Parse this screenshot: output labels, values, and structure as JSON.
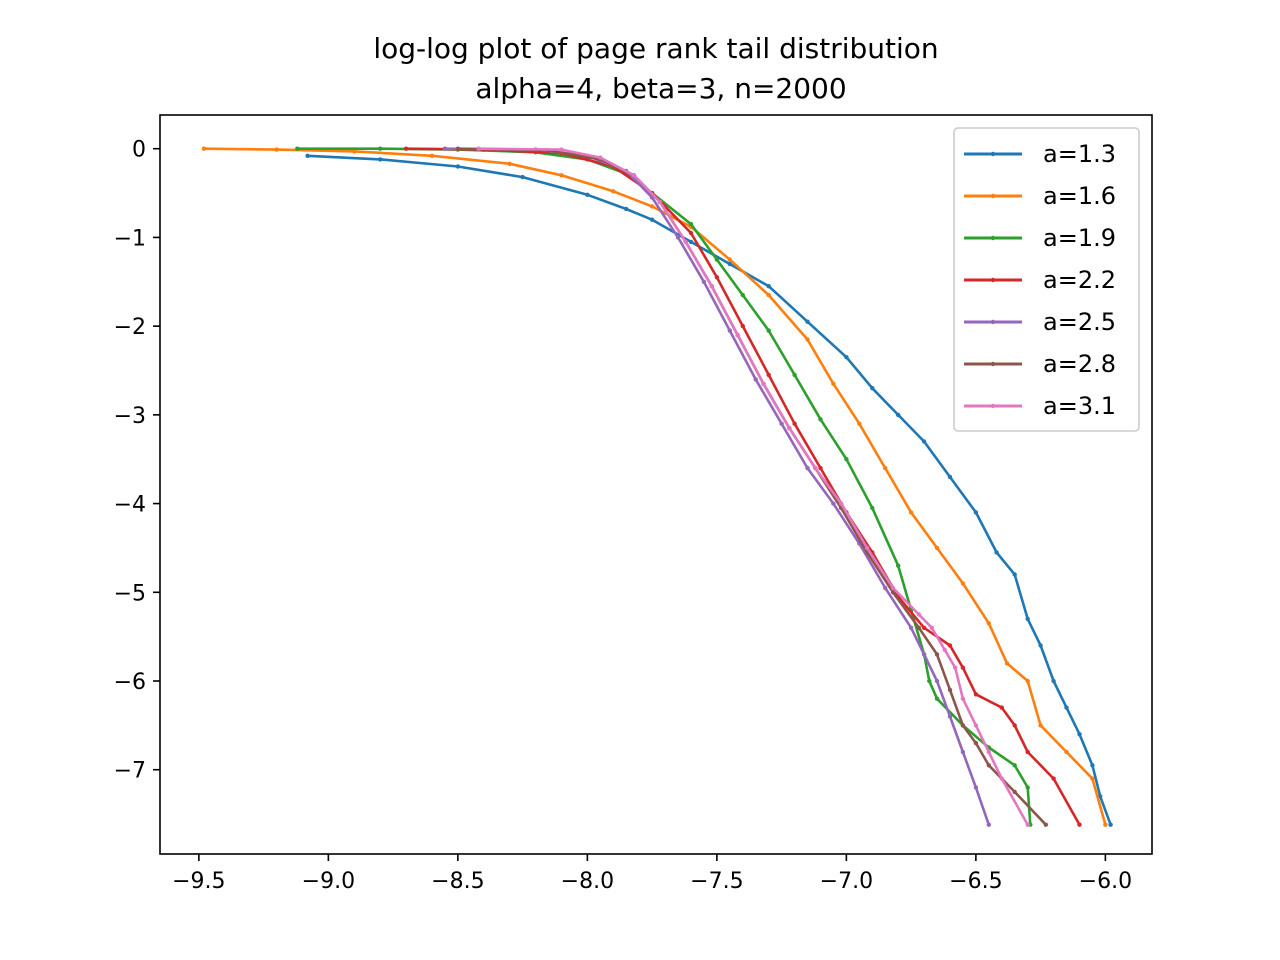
{
  "chart_data": {
    "type": "line",
    "title": "log-log plot of page rank tail distribution",
    "subtitle": "alpha=4, beta=3, n=2000",
    "xlabel": "",
    "ylabel": "",
    "xlim": [
      -9.65,
      -5.82
    ],
    "ylim": [
      -7.95,
      0.38
    ],
    "xticks": [
      -9.5,
      -9.0,
      -8.5,
      -8.0,
      -7.5,
      -7.0,
      -6.5,
      -6.0
    ],
    "xtick_labels": [
      "−9.5",
      "−9.0",
      "−8.5",
      "−8.0",
      "−7.5",
      "−7.0",
      "−6.5",
      "−6.0"
    ],
    "yticks": [
      0,
      -1,
      -2,
      -3,
      -4,
      -5,
      -6,
      -7
    ],
    "ytick_labels": [
      "0",
      "−1",
      "−2",
      "−3",
      "−4",
      "−5",
      "−6",
      "−7"
    ],
    "grid": false,
    "legend_position": "top-right",
    "series": [
      {
        "name": "a=1.3",
        "color": "#1f77b4",
        "x": [
          -9.08,
          -8.8,
          -8.5,
          -8.25,
          -8.0,
          -7.85,
          -7.75,
          -7.6,
          -7.45,
          -7.3,
          -7.15,
          -7.0,
          -6.9,
          -6.8,
          -6.7,
          -6.6,
          -6.5,
          -6.42,
          -6.35,
          -6.3,
          -6.25,
          -6.2,
          -6.15,
          -6.1,
          -6.05,
          -6.02,
          -5.98
        ],
        "y": [
          -0.08,
          -0.12,
          -0.2,
          -0.32,
          -0.52,
          -0.68,
          -0.8,
          -1.05,
          -1.3,
          -1.55,
          -1.95,
          -2.35,
          -2.7,
          -3.0,
          -3.3,
          -3.7,
          -4.1,
          -4.55,
          -4.8,
          -5.3,
          -5.6,
          -6.0,
          -6.3,
          -6.6,
          -6.95,
          -7.3,
          -7.62
        ]
      },
      {
        "name": "a=1.6",
        "color": "#ff7f0e",
        "x": [
          -9.48,
          -9.2,
          -8.9,
          -8.6,
          -8.3,
          -8.1,
          -7.9,
          -7.75,
          -7.6,
          -7.45,
          -7.3,
          -7.15,
          -7.05,
          -6.95,
          -6.85,
          -6.75,
          -6.65,
          -6.55,
          -6.45,
          -6.38,
          -6.3,
          -6.25,
          -6.15,
          -6.05,
          -6.0
        ],
        "y": [
          0.0,
          -0.01,
          -0.03,
          -0.08,
          -0.17,
          -0.3,
          -0.48,
          -0.65,
          -0.88,
          -1.25,
          -1.65,
          -2.15,
          -2.65,
          -3.1,
          -3.6,
          -4.1,
          -4.5,
          -4.9,
          -5.35,
          -5.8,
          -6.0,
          -6.5,
          -6.8,
          -7.1,
          -7.62
        ]
      },
      {
        "name": "a=1.9",
        "color": "#2ca02c",
        "x": [
          -9.12,
          -8.8,
          -8.5,
          -8.2,
          -8.0,
          -7.85,
          -7.75,
          -7.6,
          -7.5,
          -7.4,
          -7.3,
          -7.2,
          -7.1,
          -7.0,
          -6.9,
          -6.8,
          -6.75,
          -6.7,
          -6.68,
          -6.65,
          -6.55,
          -6.45,
          -6.35,
          -6.3,
          -6.29
        ],
        "y": [
          0.0,
          0.0,
          -0.01,
          -0.04,
          -0.12,
          -0.28,
          -0.5,
          -0.85,
          -1.25,
          -1.65,
          -2.05,
          -2.55,
          -3.05,
          -3.5,
          -4.05,
          -4.7,
          -5.2,
          -5.7,
          -6.0,
          -6.2,
          -6.5,
          -6.75,
          -6.95,
          -7.2,
          -7.62
        ]
      },
      {
        "name": "a=2.2",
        "color": "#d62728",
        "x": [
          -8.7,
          -8.4,
          -8.1,
          -7.9,
          -7.75,
          -7.6,
          -7.5,
          -7.4,
          -7.3,
          -7.2,
          -7.1,
          -7.0,
          -6.9,
          -6.8,
          -6.7,
          -6.6,
          -6.55,
          -6.5,
          -6.4,
          -6.35,
          -6.3,
          -6.2,
          -6.1
        ],
        "y": [
          0.0,
          -0.01,
          -0.05,
          -0.2,
          -0.5,
          -0.95,
          -1.45,
          -2.0,
          -2.55,
          -3.1,
          -3.6,
          -4.1,
          -4.55,
          -5.05,
          -5.4,
          -5.6,
          -5.85,
          -6.15,
          -6.3,
          -6.5,
          -6.8,
          -7.1,
          -7.62
        ]
      },
      {
        "name": "a=2.5",
        "color": "#9467bd",
        "x": [
          -8.55,
          -8.2,
          -8.0,
          -7.85,
          -7.75,
          -7.65,
          -7.55,
          -7.45,
          -7.35,
          -7.25,
          -7.15,
          -7.05,
          -6.95,
          -6.85,
          -6.75,
          -6.7,
          -6.65,
          -6.6,
          -6.55,
          -6.5,
          -6.45
        ],
        "y": [
          0.0,
          -0.01,
          -0.08,
          -0.25,
          -0.55,
          -1.0,
          -1.5,
          -2.05,
          -2.6,
          -3.1,
          -3.6,
          -4.0,
          -4.45,
          -4.95,
          -5.4,
          -5.7,
          -6.0,
          -6.4,
          -6.8,
          -7.2,
          -7.62
        ]
      },
      {
        "name": "a=2.8",
        "color": "#8c564b",
        "x": [
          -8.5,
          -8.15,
          -7.95,
          -7.82,
          -7.72,
          -7.62,
          -7.52,
          -7.42,
          -7.32,
          -7.22,
          -7.12,
          -7.02,
          -6.92,
          -6.82,
          -6.72,
          -6.65,
          -6.6,
          -6.55,
          -6.5,
          -6.45,
          -6.35,
          -6.23
        ],
        "y": [
          0.0,
          -0.02,
          -0.12,
          -0.3,
          -0.6,
          -1.05,
          -1.55,
          -2.1,
          -2.65,
          -3.15,
          -3.6,
          -4.05,
          -4.55,
          -5.0,
          -5.4,
          -5.7,
          -6.1,
          -6.5,
          -6.7,
          -6.95,
          -7.25,
          -7.62
        ]
      },
      {
        "name": "a=3.1",
        "color": "#e377c2",
        "x": [
          -8.42,
          -8.1,
          -7.95,
          -7.82,
          -7.72,
          -7.62,
          -7.52,
          -7.42,
          -7.32,
          -7.22,
          -7.12,
          -7.02,
          -6.92,
          -6.82,
          -6.72,
          -6.67,
          -6.62,
          -6.58,
          -6.55,
          -6.5,
          -6.45,
          -6.4,
          -6.3
        ],
        "y": [
          0.0,
          -0.01,
          -0.1,
          -0.3,
          -0.6,
          -1.05,
          -1.55,
          -2.1,
          -2.65,
          -3.15,
          -3.6,
          -4.0,
          -4.5,
          -4.95,
          -5.25,
          -5.4,
          -5.65,
          -5.85,
          -6.2,
          -6.5,
          -6.8,
          -7.1,
          -7.62
        ]
      }
    ]
  }
}
